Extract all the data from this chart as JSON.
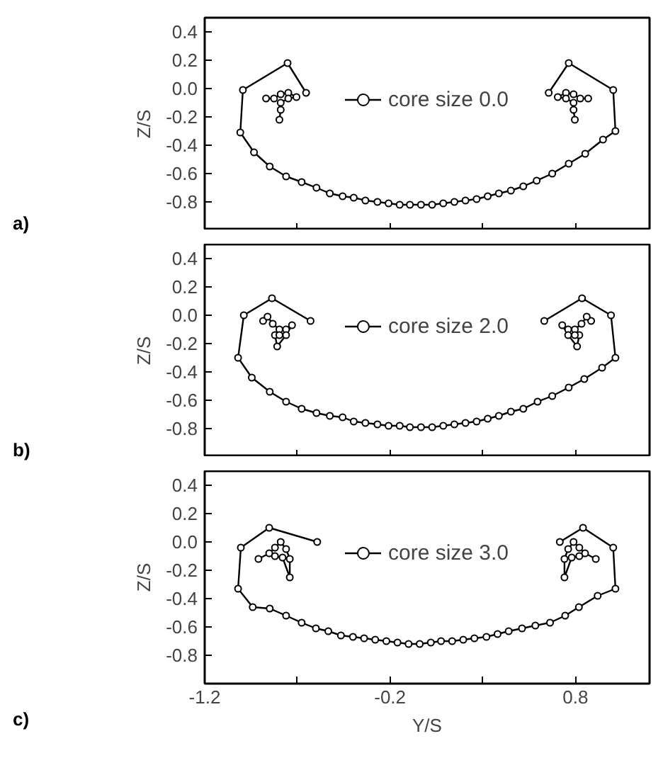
{
  "chart_data": [
    {
      "type": "line",
      "marker": "circle",
      "line_style": "solid",
      "legend": "top",
      "grid": false,
      "tick_labels": "y",
      "ylabel": "Z/S",
      "annotations": [
        "a)"
      ],
      "xlim": [
        -1.2,
        1.2
      ],
      "ylim": [
        -1.0,
        0.5
      ],
      "xticks": [
        {
          "value": -1.2,
          "label": null
        },
        {
          "value": -0.7,
          "label": null
        },
        {
          "value": -0.2,
          "label": null
        },
        {
          "value": 0.3,
          "label": null
        },
        {
          "value": 0.8,
          "label": null
        }
      ],
      "yticks": [
        {
          "value": -1.0,
          "label": null
        },
        {
          "value": -0.8,
          "label": "-0.8"
        },
        {
          "value": -0.6,
          "label": "-0.6"
        },
        {
          "value": -0.4,
          "label": "-0.4"
        },
        {
          "value": -0.2,
          "label": "-0.2"
        },
        {
          "value": 0.0,
          "label": "0.0"
        },
        {
          "value": 0.2,
          "label": "0.2"
        },
        {
          "value": 0.4,
          "label": "0.4"
        }
      ],
      "series": [
        {
          "name": "core size 0.0",
          "color": "#000000",
          "x": [
            -0.653,
            -0.753,
            -0.994,
            -1.008,
            -0.934,
            -0.849,
            -0.761,
            -0.677,
            -0.597,
            -0.525,
            -0.456,
            -0.396,
            -0.333,
            -0.268,
            -0.208,
            -0.148,
            -0.093,
            -0.033,
            0.027,
            0.087,
            0.147,
            0.207,
            0.267,
            0.327,
            0.387,
            0.452,
            0.519,
            0.591,
            0.675,
            0.764,
            0.853,
            0.949,
            1.016,
            1.004,
            0.764,
            0.656
          ],
          "values": [
            -0.03,
            0.18,
            -0.01,
            -0.31,
            -0.45,
            -0.55,
            -0.62,
            -0.66,
            -0.7,
            -0.74,
            -0.76,
            -0.77,
            -0.79,
            -0.8,
            -0.81,
            -0.82,
            -0.82,
            -0.82,
            -0.82,
            -0.81,
            -0.8,
            -0.79,
            -0.78,
            -0.76,
            -0.74,
            -0.72,
            -0.69,
            -0.65,
            -0.6,
            -0.53,
            -0.46,
            -0.36,
            -0.3,
            -0.01,
            0.18,
            -0.03
          ]
        },
        {
          "color": "#000000",
          "x": [
            -0.869,
            -0.826,
            -0.79,
            -0.749,
            -0.705,
            -0.749,
            -0.79,
            -0.79,
            -0.797
          ],
          "values": [
            -0.07,
            -0.07,
            -0.04,
            -0.03,
            -0.06,
            -0.07,
            -0.1,
            -0.15,
            -0.22
          ]
        },
        {
          "color": "#000000",
          "x": [
            0.869,
            0.826,
            0.79,
            0.749,
            0.705,
            0.749,
            0.79,
            0.79,
            0.797
          ],
          "values": [
            -0.07,
            -0.07,
            -0.04,
            -0.03,
            -0.06,
            -0.07,
            -0.1,
            -0.15,
            -0.22
          ]
        }
      ]
    },
    {
      "type": "line",
      "marker": "circle",
      "line_style": "solid",
      "legend": "top",
      "grid": false,
      "tick_labels": "y",
      "ylabel": "Z/S",
      "annotations": [
        "b)"
      ],
      "xlim": [
        -1.2,
        1.2
      ],
      "ylim": [
        -1.0,
        0.5
      ],
      "xticks": [
        {
          "value": -1.2,
          "label": null
        },
        {
          "value": -0.7,
          "label": null
        },
        {
          "value": -0.2,
          "label": null
        },
        {
          "value": 0.3,
          "label": null
        },
        {
          "value": 0.8,
          "label": null
        }
      ],
      "yticks": [
        {
          "value": -1.0,
          "label": null
        },
        {
          "value": -0.8,
          "label": "-0.8"
        },
        {
          "value": -0.6,
          "label": "-0.6"
        },
        {
          "value": -0.4,
          "label": "-0.4"
        },
        {
          "value": -0.2,
          "label": "-0.2"
        },
        {
          "value": 0.0,
          "label": "0.0"
        },
        {
          "value": 0.2,
          "label": "0.2"
        },
        {
          "value": 0.4,
          "label": "0.4"
        }
      ],
      "series": [
        {
          "name": "core size 2.0",
          "color": "#000000",
          "x": [
            -0.629,
            -0.837,
            -0.989,
            -1.02,
            -0.946,
            -0.849,
            -0.761,
            -0.677,
            -0.597,
            -0.525,
            -0.456,
            -0.396,
            -0.333,
            -0.268,
            -0.208,
            -0.148,
            -0.093,
            -0.033,
            0.027,
            0.087,
            0.147,
            0.207,
            0.267,
            0.327,
            0.387,
            0.452,
            0.519,
            0.596,
            0.675,
            0.764,
            0.848,
            0.944,
            1.016,
            0.992,
            0.836,
            0.632
          ],
          "values": [
            -0.04,
            0.12,
            0.0,
            -0.3,
            -0.44,
            -0.54,
            -0.61,
            -0.66,
            -0.69,
            -0.71,
            -0.72,
            -0.75,
            -0.76,
            -0.77,
            -0.78,
            -0.78,
            -0.79,
            -0.79,
            -0.79,
            -0.78,
            -0.77,
            -0.76,
            -0.75,
            -0.73,
            -0.71,
            -0.68,
            -0.66,
            -0.61,
            -0.57,
            -0.51,
            -0.45,
            -0.37,
            -0.3,
            0.0,
            0.12,
            -0.04
          ]
        },
        {
          "color": "#000000",
          "x": [
            -0.885,
            -0.861,
            -0.833,
            -0.797,
            -0.761,
            -0.729,
            -0.761,
            -0.809,
            -0.821,
            -0.797
          ],
          "values": [
            -0.04,
            -0.01,
            -0.06,
            -0.1,
            -0.1,
            -0.07,
            -0.14,
            -0.22,
            -0.14,
            -0.14
          ]
        },
        {
          "color": "#000000",
          "x": [
            0.885,
            0.861,
            0.833,
            0.797,
            0.761,
            0.729,
            0.761,
            0.809,
            0.821,
            0.797
          ],
          "values": [
            -0.04,
            -0.01,
            -0.06,
            -0.1,
            -0.1,
            -0.07,
            -0.14,
            -0.22,
            -0.14,
            -0.14
          ]
        }
      ]
    },
    {
      "type": "line",
      "marker": "circle",
      "line_style": "solid",
      "legend": "top",
      "grid": false,
      "xlabel": "Y/S",
      "ylabel": "Z/S",
      "annotations": [
        "c)"
      ],
      "xlim": [
        -1.2,
        1.2
      ],
      "ylim": [
        -1.0,
        0.5
      ],
      "xticks": [
        {
          "value": -1.2,
          "label": "-1.2"
        },
        {
          "value": -0.7,
          "label": null
        },
        {
          "value": -0.2,
          "label": "-0.2"
        },
        {
          "value": 0.3,
          "label": null
        },
        {
          "value": 0.8,
          "label": "0.8"
        }
      ],
      "yticks": [
        {
          "value": -1.0,
          "label": null
        },
        {
          "value": -0.8,
          "label": "-0.8"
        },
        {
          "value": -0.6,
          "label": "-0.6"
        },
        {
          "value": -0.4,
          "label": "-0.4"
        },
        {
          "value": -0.2,
          "label": "-0.2"
        },
        {
          "value": 0.0,
          "label": "0.0"
        },
        {
          "value": 0.2,
          "label": "0.2"
        },
        {
          "value": 0.4,
          "label": "0.4"
        }
      ],
      "series": [
        {
          "name": "core size 3.0",
          "color": "#000000",
          "x": [
            -0.593,
            -0.852,
            -1.005,
            -1.02,
            -0.941,
            -0.849,
            -0.761,
            -0.677,
            -0.6,
            -0.533,
            -0.465,
            -0.4,
            -0.34,
            -0.28,
            -0.22,
            -0.16,
            -0.1,
            -0.04,
            0.02,
            0.075,
            0.135,
            0.195,
            0.255,
            0.32,
            0.38,
            0.44,
            0.512,
            0.584,
            0.663,
            0.745,
            0.819,
            0.92,
            1.016,
            1.004,
            0.841,
            0.716
          ],
          "values": [
            0.0,
            0.1,
            -0.04,
            -0.33,
            -0.46,
            -0.47,
            -0.52,
            -0.57,
            -0.61,
            -0.63,
            -0.66,
            -0.67,
            -0.68,
            -0.69,
            -0.7,
            -0.71,
            -0.72,
            -0.72,
            -0.71,
            -0.7,
            -0.7,
            -0.69,
            -0.68,
            -0.67,
            -0.65,
            -0.63,
            -0.61,
            -0.59,
            -0.57,
            -0.52,
            -0.46,
            -0.38,
            -0.33,
            -0.04,
            0.1,
            0.0
          ]
        },
        {
          "color": "#000000",
          "x": [
            -0.91,
            -0.852,
            -0.821,
            -0.79,
            -0.761,
            -0.741,
            -0.741,
            -0.78,
            -0.821
          ],
          "values": [
            -0.12,
            -0.08,
            -0.04,
            0.0,
            -0.05,
            -0.12,
            -0.25,
            -0.11,
            -0.1
          ]
        },
        {
          "color": "#000000",
          "x": [
            0.91,
            0.852,
            0.821,
            0.79,
            0.761,
            0.741,
            0.741,
            0.78,
            0.821
          ],
          "values": [
            -0.12,
            -0.08,
            -0.04,
            0.0,
            -0.05,
            -0.12,
            -0.25,
            -0.11,
            -0.1
          ]
        }
      ]
    }
  ]
}
